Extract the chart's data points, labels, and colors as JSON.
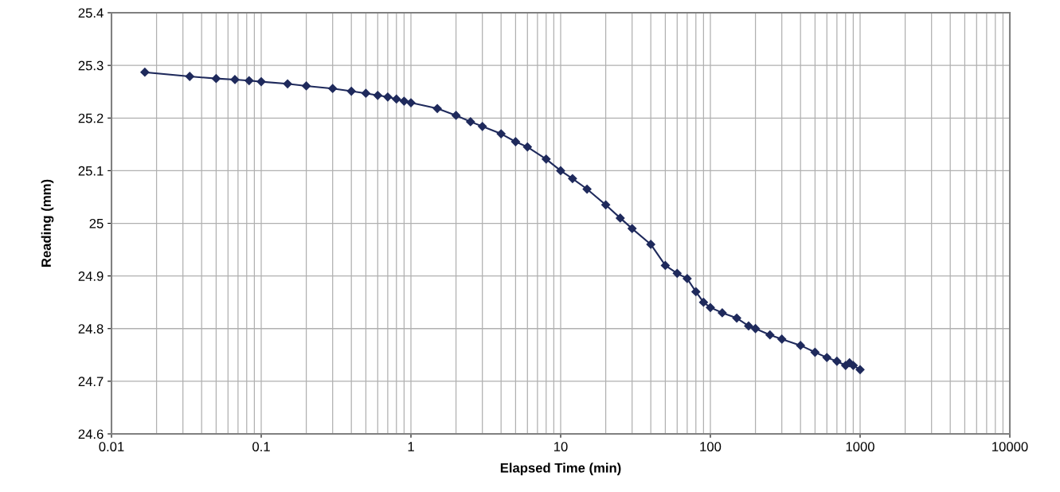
{
  "chart_data": {
    "type": "line",
    "xlabel": "Elapsed Time (min)",
    "ylabel": "Reading (mm)",
    "log": "x",
    "grid": true,
    "marker": "diamond",
    "line_style": "solid",
    "xlim": [
      0.01,
      10000
    ],
    "xticks": [
      0.01,
      0.1,
      1,
      10,
      100,
      1000,
      10000
    ],
    "ylim": [
      24.6,
      25.4
    ],
    "yticks": [
      24.6,
      24.7,
      24.8,
      24.9,
      25,
      25.1,
      25.2,
      25.3,
      25.4
    ],
    "series": [
      {
        "color": "#1f2a5c",
        "x": [
          0.0167,
          0.0333,
          0.05,
          0.0667,
          0.083,
          0.1,
          0.15,
          0.2,
          0.3,
          0.4,
          0.5,
          0.6,
          0.7,
          0.8,
          0.9,
          1,
          1.5,
          2,
          2.5,
          3,
          4,
          5,
          6,
          8,
          10,
          12,
          15,
          20,
          25,
          30,
          40,
          50,
          60,
          70,
          80,
          90,
          100,
          120,
          150,
          180,
          200,
          250,
          300,
          400,
          500,
          600,
          700,
          800,
          850,
          900,
          1000
        ],
        "values": [
          25.287,
          25.279,
          25.275,
          25.273,
          25.271,
          25.269,
          25.265,
          25.261,
          25.256,
          25.251,
          25.247,
          25.243,
          25.24,
          25.236,
          25.232,
          25.229,
          25.218,
          25.205,
          25.193,
          25.184,
          25.17,
          25.155,
          25.145,
          25.122,
          25.1,
          25.085,
          25.065,
          25.035,
          25.01,
          24.99,
          24.96,
          24.92,
          24.905,
          24.895,
          24.87,
          24.85,
          24.84,
          24.83,
          24.82,
          24.805,
          24.8,
          24.788,
          24.78,
          24.768,
          24.755,
          24.745,
          24.738,
          24.73,
          24.735,
          24.73,
          24.722
        ]
      }
    ]
  }
}
